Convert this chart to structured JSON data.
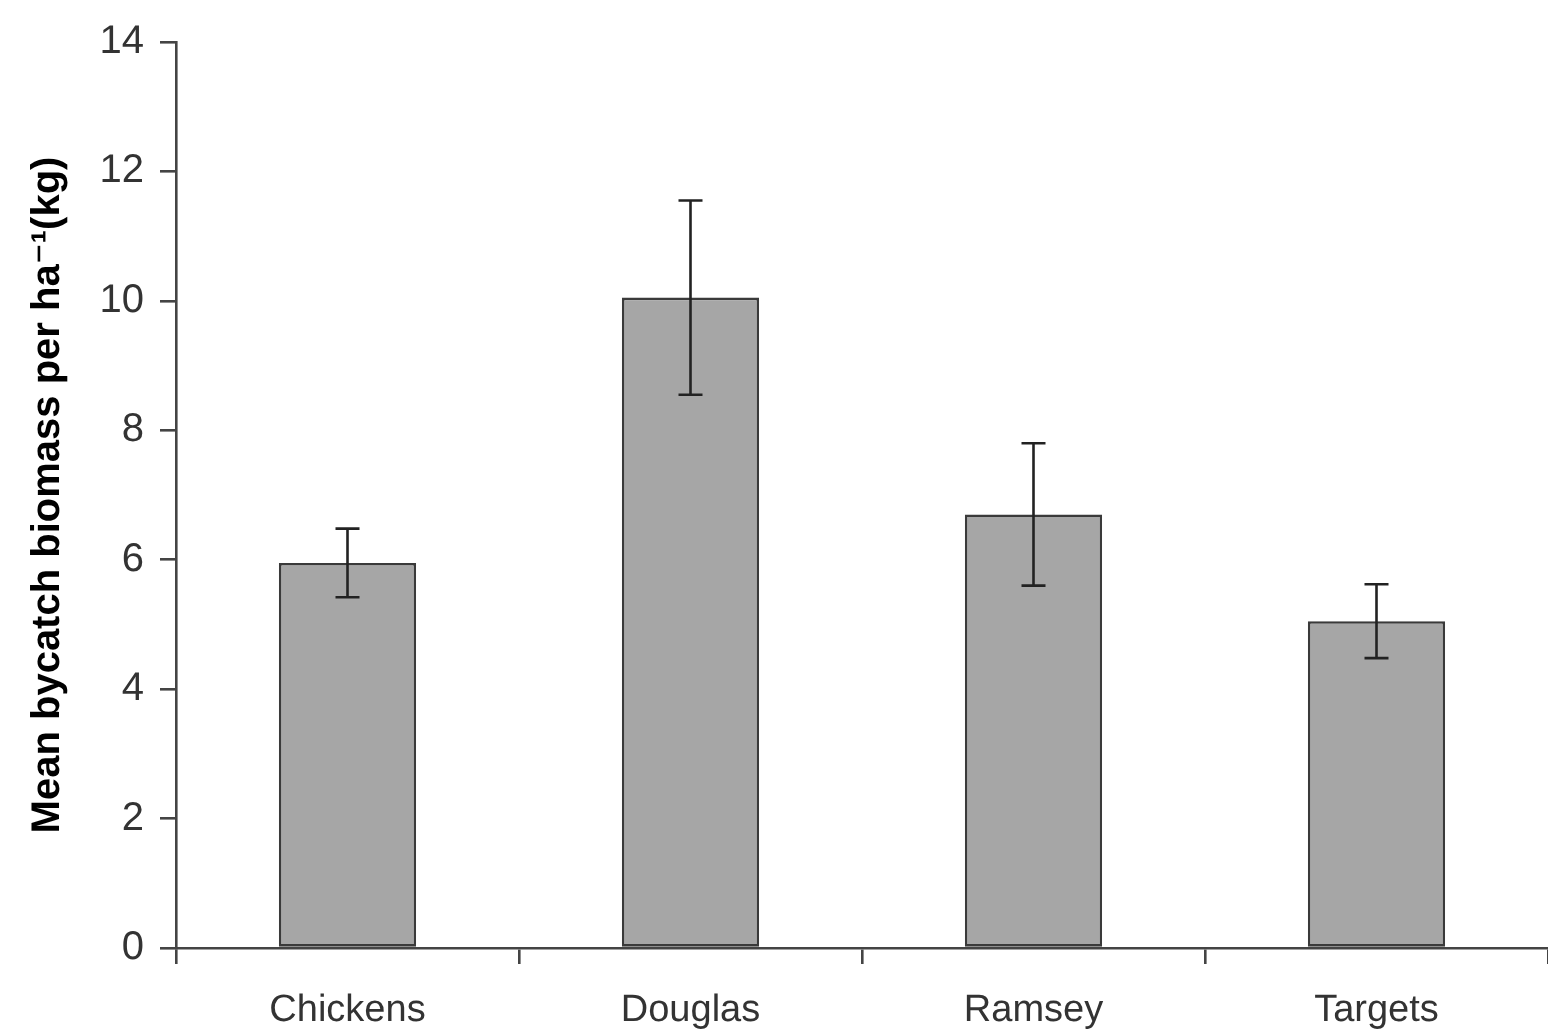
{
  "chart_data": {
    "type": "bar",
    "ylabel": "Mean bycatch biomass per ha⁻¹(kg)",
    "categories": [
      "Chickens",
      "Douglas",
      "Ramsey",
      "Targets"
    ],
    "values": [
      5.95,
      10.05,
      6.7,
      5.05
    ],
    "errors": [
      0.53,
      1.5,
      1.1,
      0.57
    ],
    "color": "#a6a6a6",
    "ylim": [
      0,
      14
    ],
    "yticks": [
      0,
      2,
      4,
      6,
      8,
      10,
      12,
      14
    ],
    "grid": false,
    "legend": false
  }
}
